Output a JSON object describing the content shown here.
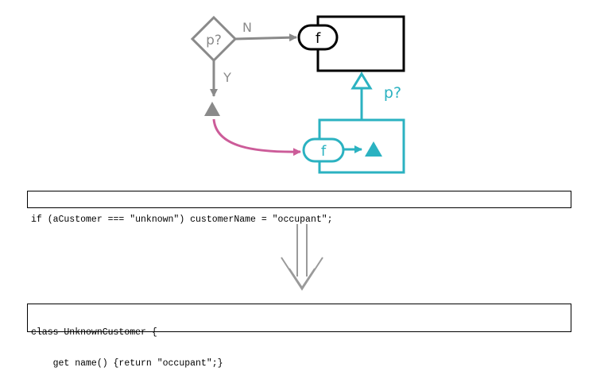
{
  "diagram": {
    "decision_label": "p?",
    "no_label": "N",
    "yes_label": "Y",
    "function_label": "f",
    "subclass_function_label": "f",
    "inherit_label": "p?",
    "colors": {
      "gray": "#8a8a8a",
      "black": "#000000",
      "teal": "#2bb2c1",
      "magenta": "#cc5c99"
    }
  },
  "code_before": {
    "lines": [
      "if (aCustomer === \"unknown\") customerName = \"occupant\";"
    ]
  },
  "code_after": {
    "lines": [
      "class UnknownCustomer {",
      "    get name() {return \"occupant\";}"
    ]
  }
}
